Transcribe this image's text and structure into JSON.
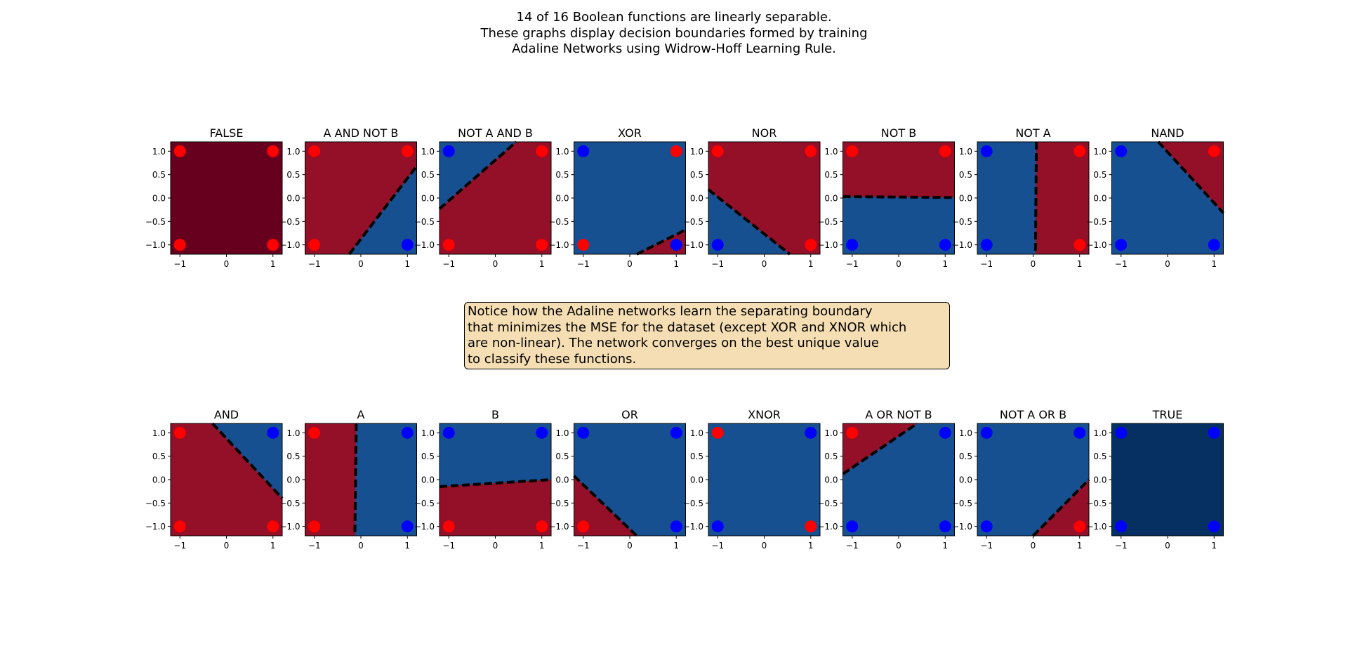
{
  "suptitle": {
    "lines": [
      "14 of 16 Boolean functions are linearly separable.",
      "These graphs display decision boundaries formed by training",
      "Adaline Networks using Widrow-Hoff Learning Rule."
    ]
  },
  "note": {
    "lines": [
      "Notice how the Adaline networks learn the separating boundary",
      "that minimizes the MSE for the dataset (except XOR and XNOR which",
      "are non-linear). The network converges on the best unique value",
      "to classify these functions."
    ]
  },
  "colors": {
    "region_red": "#940f28",
    "region_blue": "#175090",
    "region_dark_red": "#67001f",
    "region_dark_blue": "#053061",
    "point_red": "#ff0000",
    "point_blue": "#0000ff",
    "boundary": "#000000"
  },
  "chart_data": [
    {
      "type": "scatter",
      "title": "FALSE",
      "xlim": [
        -1.2,
        1.2
      ],
      "ylim": [
        -1.2,
        1.2
      ],
      "xticks": [
        "−1",
        "0",
        "1"
      ],
      "yticks": [
        "1.0",
        "0.5",
        "0.0",
        "−0.5",
        "−1.0"
      ],
      "fill": "dark_red",
      "boundary": null,
      "points": [
        {
          "x": -1,
          "y": 1,
          "c": "red"
        },
        {
          "x": 1,
          "y": 1,
          "c": "red"
        },
        {
          "x": -1,
          "y": -1,
          "c": "red"
        },
        {
          "x": 1,
          "y": -1,
          "c": "red"
        }
      ]
    },
    {
      "type": "scatter",
      "title": "A AND NOT B",
      "xlim": [
        -1.2,
        1.2
      ],
      "ylim": [
        -1.2,
        1.2
      ],
      "xticks": [
        "−1",
        "0",
        "1"
      ],
      "yticks": [
        "1.0",
        "0.5",
        "0.0",
        "−0.5",
        "−1.0"
      ],
      "fill": "red",
      "boundary": {
        "p1": [
          -0.25,
          -1.2
        ],
        "p2": [
          1.2,
          0.68
        ],
        "other_fill": "blue",
        "other_side": "lower-right"
      },
      "points": [
        {
          "x": -1,
          "y": 1,
          "c": "red"
        },
        {
          "x": 1,
          "y": 1,
          "c": "red"
        },
        {
          "x": -1,
          "y": -1,
          "c": "red"
        },
        {
          "x": 1,
          "y": -1,
          "c": "blue"
        }
      ]
    },
    {
      "type": "scatter",
      "title": "NOT A AND B",
      "xlim": [
        -1.2,
        1.2
      ],
      "ylim": [
        -1.2,
        1.2
      ],
      "xticks": [
        "−1",
        "0",
        "1"
      ],
      "yticks": [
        "1.0",
        "0.5",
        "0.0",
        "−0.5",
        "−1.0"
      ],
      "fill": "red",
      "boundary": {
        "p1": [
          -1.2,
          -0.23
        ],
        "p2": [
          0.45,
          1.2
        ],
        "other_fill": "blue",
        "other_side": "upper-left"
      },
      "points": [
        {
          "x": -1,
          "y": 1,
          "c": "blue"
        },
        {
          "x": 1,
          "y": 1,
          "c": "red"
        },
        {
          "x": -1,
          "y": -1,
          "c": "red"
        },
        {
          "x": 1,
          "y": -1,
          "c": "red"
        }
      ]
    },
    {
      "type": "scatter",
      "title": "XOR",
      "xlim": [
        -1.2,
        1.2
      ],
      "ylim": [
        -1.2,
        1.2
      ],
      "xticks": [
        "−1",
        "0",
        "1"
      ],
      "yticks": [
        "1.0",
        "0.5",
        "0.0",
        "−0.5",
        "−1.0"
      ],
      "fill": "blue",
      "boundary": {
        "p1": [
          0.15,
          -1.2
        ],
        "p2": [
          1.2,
          -0.68
        ],
        "other_fill": "red",
        "other_side": "lower-right"
      },
      "points": [
        {
          "x": -1,
          "y": 1,
          "c": "blue"
        },
        {
          "x": 1,
          "y": 1,
          "c": "red"
        },
        {
          "x": -1,
          "y": -1,
          "c": "red"
        },
        {
          "x": 1,
          "y": -1,
          "c": "blue"
        }
      ]
    },
    {
      "type": "scatter",
      "title": "NOR",
      "xlim": [
        -1.2,
        1.2
      ],
      "ylim": [
        -1.2,
        1.2
      ],
      "xticks": [
        "−1",
        "0",
        "1"
      ],
      "yticks": [
        "1.0",
        "0.5",
        "0.0",
        "−0.5",
        "−1.0"
      ],
      "fill": "red",
      "boundary": {
        "p1": [
          -1.2,
          0.18
        ],
        "p2": [
          0.55,
          -1.2
        ],
        "other_fill": "blue",
        "other_side": "lower-left"
      },
      "points": [
        {
          "x": -1,
          "y": 1,
          "c": "red"
        },
        {
          "x": 1,
          "y": 1,
          "c": "red"
        },
        {
          "x": -1,
          "y": -1,
          "c": "blue"
        },
        {
          "x": 1,
          "y": -1,
          "c": "red"
        }
      ]
    },
    {
      "type": "scatter",
      "title": "NOT B",
      "xlim": [
        -1.2,
        1.2
      ],
      "ylim": [
        -1.2,
        1.2
      ],
      "xticks": [
        "−1",
        "0",
        "1"
      ],
      "yticks": [
        "1.0",
        "0.5",
        "0.0",
        "−0.5",
        "−1.0"
      ],
      "fill": "red",
      "boundary": {
        "p1": [
          -1.2,
          0.03
        ],
        "p2": [
          1.2,
          0.01
        ],
        "other_fill": "blue",
        "other_side": "lower"
      },
      "points": [
        {
          "x": -1,
          "y": 1,
          "c": "red"
        },
        {
          "x": 1,
          "y": 1,
          "c": "red"
        },
        {
          "x": -1,
          "y": -1,
          "c": "blue"
        },
        {
          "x": 1,
          "y": -1,
          "c": "blue"
        }
      ]
    },
    {
      "type": "scatter",
      "title": "NOT A",
      "xlim": [
        -1.2,
        1.2
      ],
      "ylim": [
        -1.2,
        1.2
      ],
      "xticks": [
        "−1",
        "0",
        "1"
      ],
      "yticks": [
        "1.0",
        "0.5",
        "0.0",
        "−0.5",
        "−1.0"
      ],
      "fill": "red",
      "boundary": {
        "p1": [
          0.07,
          1.2
        ],
        "p2": [
          0.05,
          -1.2
        ],
        "other_fill": "blue",
        "other_side": "left"
      },
      "points": [
        {
          "x": -1,
          "y": 1,
          "c": "blue"
        },
        {
          "x": 1,
          "y": 1,
          "c": "red"
        },
        {
          "x": -1,
          "y": -1,
          "c": "blue"
        },
        {
          "x": 1,
          "y": -1,
          "c": "red"
        }
      ]
    },
    {
      "type": "scatter",
      "title": "NAND",
      "xlim": [
        -1.2,
        1.2
      ],
      "ylim": [
        -1.2,
        1.2
      ],
      "xticks": [
        "−1",
        "0",
        "1"
      ],
      "yticks": [
        "1.0",
        "0.5",
        "0.0",
        "−0.5",
        "−1.0"
      ],
      "fill": "blue",
      "boundary": {
        "p1": [
          -0.2,
          1.2
        ],
        "p2": [
          1.2,
          -0.32
        ],
        "other_fill": "red",
        "other_side": "upper-right"
      },
      "points": [
        {
          "x": -1,
          "y": 1,
          "c": "blue"
        },
        {
          "x": 1,
          "y": 1,
          "c": "red"
        },
        {
          "x": -1,
          "y": -1,
          "c": "blue"
        },
        {
          "x": 1,
          "y": -1,
          "c": "blue"
        }
      ]
    },
    {
      "type": "scatter",
      "title": "AND",
      "xlim": [
        -1.2,
        1.2
      ],
      "ylim": [
        -1.2,
        1.2
      ],
      "xticks": [
        "−1",
        "0",
        "1"
      ],
      "yticks": [
        "1.0",
        "0.5",
        "0.0",
        "−0.5",
        "−1.0"
      ],
      "fill": "red",
      "boundary": {
        "p1": [
          -0.3,
          1.2
        ],
        "p2": [
          1.2,
          -0.4
        ],
        "other_fill": "blue",
        "other_side": "upper-right"
      },
      "points": [
        {
          "x": -1,
          "y": 1,
          "c": "red"
        },
        {
          "x": 1,
          "y": 1,
          "c": "blue"
        },
        {
          "x": -1,
          "y": -1,
          "c": "red"
        },
        {
          "x": 1,
          "y": -1,
          "c": "red"
        }
      ]
    },
    {
      "type": "scatter",
      "title": "A",
      "xlim": [
        -1.2,
        1.2
      ],
      "ylim": [
        -1.2,
        1.2
      ],
      "xticks": [
        "−1",
        "0",
        "1"
      ],
      "yticks": [
        "1.0",
        "0.5",
        "0.0",
        "−0.5",
        "−1.0"
      ],
      "fill": "red",
      "boundary": {
        "p1": [
          -0.1,
          1.2
        ],
        "p2": [
          -0.13,
          -1.2
        ],
        "other_fill": "blue",
        "other_side": "right"
      },
      "points": [
        {
          "x": -1,
          "y": 1,
          "c": "red"
        },
        {
          "x": 1,
          "y": 1,
          "c": "blue"
        },
        {
          "x": -1,
          "y": -1,
          "c": "red"
        },
        {
          "x": 1,
          "y": -1,
          "c": "blue"
        }
      ]
    },
    {
      "type": "scatter",
      "title": "B",
      "xlim": [
        -1.2,
        1.2
      ],
      "ylim": [
        -1.2,
        1.2
      ],
      "xticks": [
        "−1",
        "0",
        "1"
      ],
      "yticks": [
        "1.0",
        "0.5",
        "0.0",
        "−0.5",
        "−1.0"
      ],
      "fill": "red",
      "boundary": {
        "p1": [
          -1.2,
          -0.15
        ],
        "p2": [
          1.2,
          0.0
        ],
        "other_fill": "blue",
        "other_side": "upper"
      },
      "points": [
        {
          "x": -1,
          "y": 1,
          "c": "blue"
        },
        {
          "x": 1,
          "y": 1,
          "c": "blue"
        },
        {
          "x": -1,
          "y": -1,
          "c": "red"
        },
        {
          "x": 1,
          "y": -1,
          "c": "red"
        }
      ]
    },
    {
      "type": "scatter",
      "title": "OR",
      "xlim": [
        -1.2,
        1.2
      ],
      "ylim": [
        -1.2,
        1.2
      ],
      "xticks": [
        "−1",
        "0",
        "1"
      ],
      "yticks": [
        "1.0",
        "0.5",
        "0.0",
        "−0.5",
        "−1.0"
      ],
      "fill": "blue",
      "boundary": {
        "p1": [
          -1.2,
          0.08
        ],
        "p2": [
          0.15,
          -1.2
        ],
        "other_fill": "red",
        "other_side": "lower-left"
      },
      "points": [
        {
          "x": -1,
          "y": 1,
          "c": "blue"
        },
        {
          "x": 1,
          "y": 1,
          "c": "blue"
        },
        {
          "x": -1,
          "y": -1,
          "c": "red"
        },
        {
          "x": 1,
          "y": -1,
          "c": "blue"
        }
      ]
    },
    {
      "type": "scatter",
      "title": "XNOR",
      "xlim": [
        -1.2,
        1.2
      ],
      "ylim": [
        -1.2,
        1.2
      ],
      "xticks": [
        "−1",
        "0",
        "1"
      ],
      "yticks": [
        "1.0",
        "0.5",
        "0.0",
        "−0.5",
        "−1.0"
      ],
      "fill": "blue",
      "boundary": null,
      "points": [
        {
          "x": -1,
          "y": 1,
          "c": "red"
        },
        {
          "x": 1,
          "y": 1,
          "c": "blue"
        },
        {
          "x": -1,
          "y": -1,
          "c": "blue"
        },
        {
          "x": 1,
          "y": -1,
          "c": "red"
        }
      ]
    },
    {
      "type": "scatter",
      "title": "A OR NOT B",
      "xlim": [
        -1.2,
        1.2
      ],
      "ylim": [
        -1.2,
        1.2
      ],
      "xticks": [
        "−1",
        "0",
        "1"
      ],
      "yticks": [
        "1.0",
        "0.5",
        "0.0",
        "−0.5",
        "−1.0"
      ],
      "fill": "blue",
      "boundary": {
        "p1": [
          -1.2,
          0.12
        ],
        "p2": [
          0.4,
          1.2
        ],
        "other_fill": "red",
        "other_side": "upper-left"
      },
      "points": [
        {
          "x": -1,
          "y": 1,
          "c": "red"
        },
        {
          "x": 1,
          "y": 1,
          "c": "blue"
        },
        {
          "x": -1,
          "y": -1,
          "c": "blue"
        },
        {
          "x": 1,
          "y": -1,
          "c": "blue"
        }
      ]
    },
    {
      "type": "scatter",
      "title": "NOT A OR B",
      "xlim": [
        -1.2,
        1.2
      ],
      "ylim": [
        -1.2,
        1.2
      ],
      "xticks": [
        "−1",
        "0",
        "1"
      ],
      "yticks": [
        "1.0",
        "0.5",
        "0.0",
        "−0.5",
        "−1.0"
      ],
      "fill": "blue",
      "boundary": {
        "p1": [
          0.0,
          -1.2
        ],
        "p2": [
          1.2,
          0.0
        ],
        "other_fill": "red",
        "other_side": "lower-right"
      },
      "points": [
        {
          "x": -1,
          "y": 1,
          "c": "blue"
        },
        {
          "x": 1,
          "y": 1,
          "c": "blue"
        },
        {
          "x": -1,
          "y": -1,
          "c": "blue"
        },
        {
          "x": 1,
          "y": -1,
          "c": "red"
        }
      ]
    },
    {
      "type": "scatter",
      "title": "TRUE",
      "xlim": [
        -1.2,
        1.2
      ],
      "ylim": [
        -1.2,
        1.2
      ],
      "xticks": [
        "−1",
        "0",
        "1"
      ],
      "yticks": [
        "1.0",
        "0.5",
        "0.0",
        "−0.5",
        "−1.0"
      ],
      "fill": "dark_blue",
      "boundary": null,
      "points": [
        {
          "x": -1,
          "y": 1,
          "c": "blue"
        },
        {
          "x": 1,
          "y": 1,
          "c": "blue"
        },
        {
          "x": -1,
          "y": -1,
          "c": "blue"
        },
        {
          "x": 1,
          "y": -1,
          "c": "blue"
        }
      ]
    }
  ]
}
